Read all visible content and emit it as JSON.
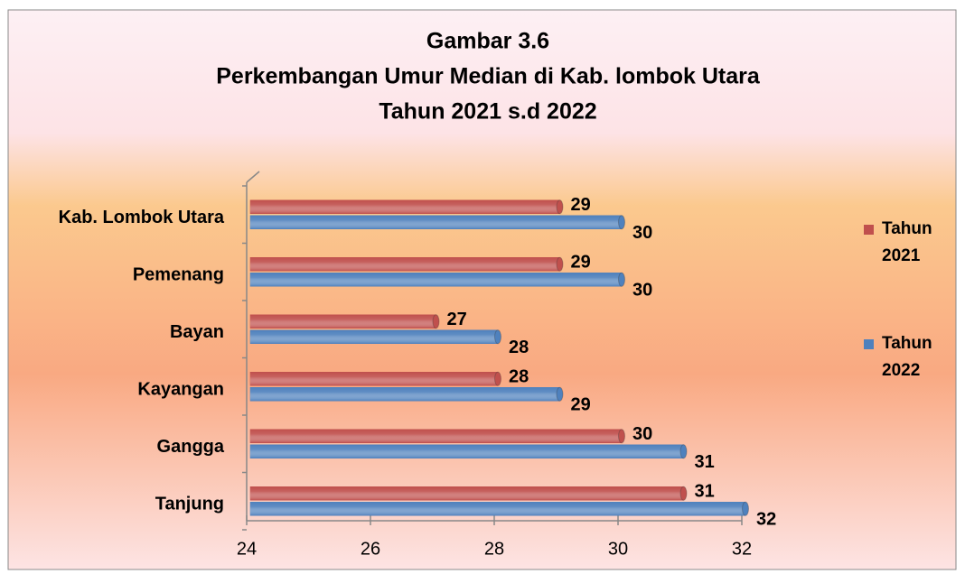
{
  "chart_data": {
    "type": "bar",
    "orientation": "horizontal",
    "title": [
      "Gambar 3.6",
      "Perkembangan Umur Median di Kab. lombok Utara",
      "Tahun 2021 s.d 2022"
    ],
    "categories": [
      "Kab. Lombok Utara",
      "Pemenang",
      "Bayan",
      "Kayangan",
      "Gangga",
      "Tanjung"
    ],
    "series": [
      {
        "name": "Tahun 2021",
        "color": "#c0504d",
        "values": [
          29,
          29,
          27,
          28,
          30,
          31
        ]
      },
      {
        "name": "Tahun 2022",
        "color": "#4f81bd",
        "values": [
          30,
          30,
          28,
          29,
          31,
          32
        ]
      }
    ],
    "xlim": [
      24,
      32
    ],
    "xticks": [
      24,
      26,
      28,
      30,
      32
    ],
    "legend": "right"
  }
}
